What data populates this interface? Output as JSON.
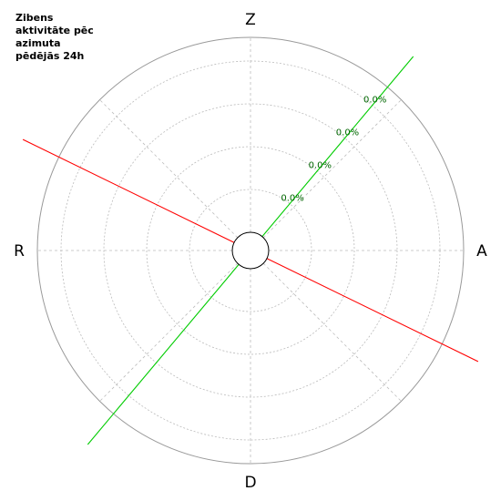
{
  "chart_data": {
    "type": "polar",
    "title_lines": [
      "Zibens",
      "aktivitāte pēc",
      "azimuta",
      "pēdējās 24h"
    ],
    "directions": [
      {
        "label": "Z",
        "azimuth": 0
      },
      {
        "label": "A",
        "azimuth": 90
      },
      {
        "label": "D",
        "azimuth": 180
      },
      {
        "label": "R",
        "azimuth": 270
      }
    ],
    "rings": [
      {
        "level": 1,
        "label": "0.0%"
      },
      {
        "level": 2,
        "label": "0.0%"
      },
      {
        "level": 3,
        "label": "0.0%"
      },
      {
        "level": 4,
        "label": "0.0%"
      }
    ],
    "grid": true,
    "spoke_azimuths": [
      0,
      45,
      90,
      135,
      180,
      225,
      270,
      315
    ],
    "lines": [
      {
        "azimuth": 40,
        "color": "#00cc00"
      },
      {
        "azimuth": 116,
        "color": "#ff0000"
      }
    ],
    "colors": {
      "ring_label": "#006600",
      "outer_circle": "#999999",
      "grid": "#bbbbbb"
    }
  }
}
